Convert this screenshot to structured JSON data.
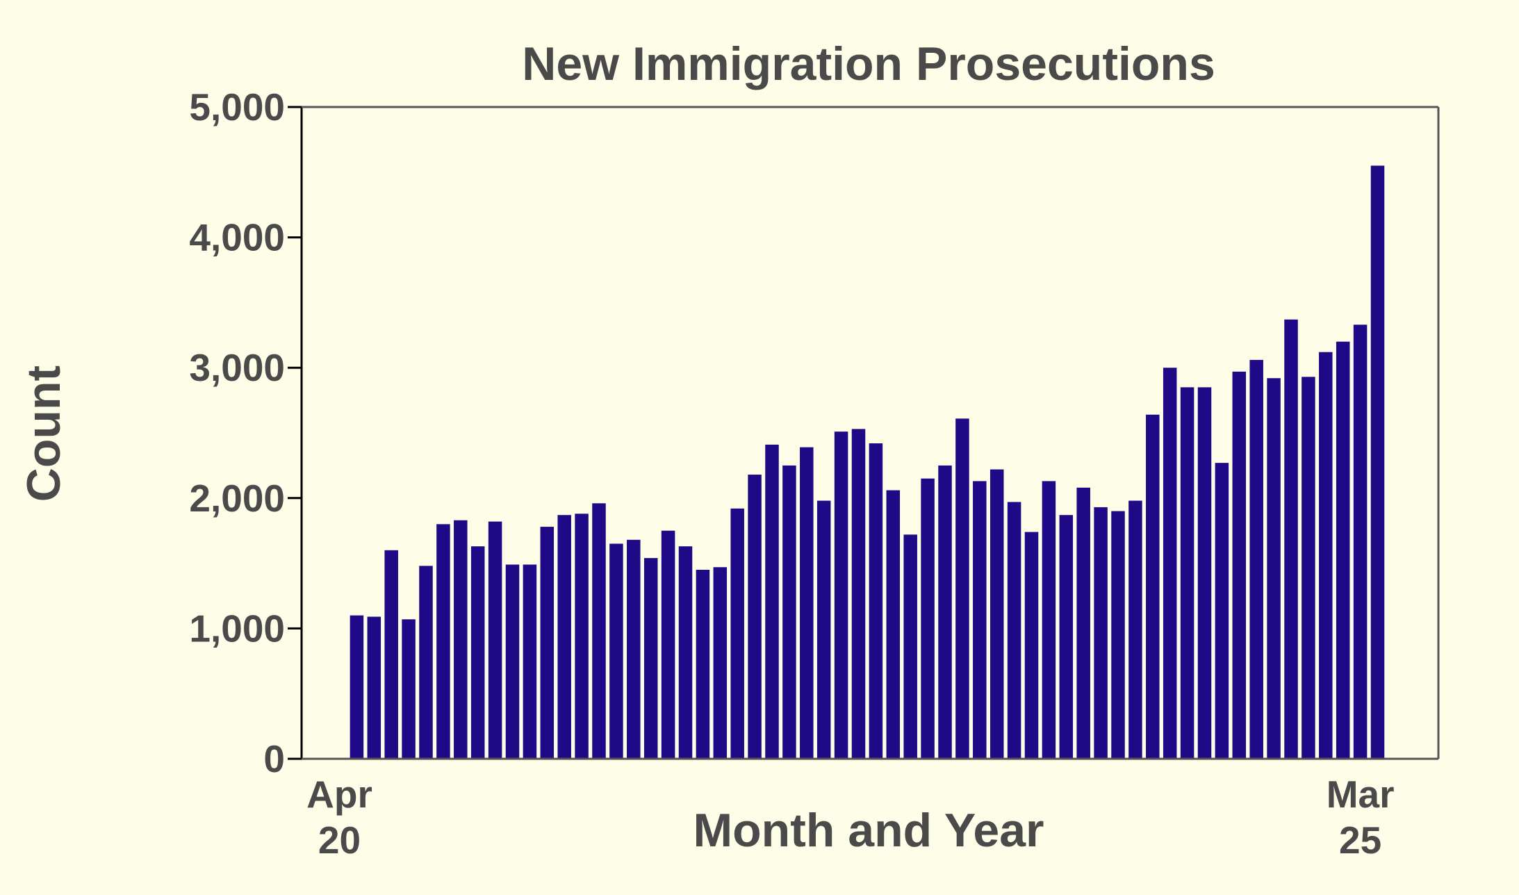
{
  "chart_data": {
    "type": "bar",
    "title": "New Immigration Prosecutions",
    "xlabel": "Month and Year",
    "ylabel": "Count",
    "ylim": [
      0,
      5000
    ],
    "yticks": [
      0,
      1000,
      2000,
      3000,
      4000,
      5000
    ],
    "ytick_labels": [
      "0",
      "1,000",
      "2,000",
      "3,000",
      "4,000",
      "5,000"
    ],
    "xtick_labels": [
      {
        "month": "Apr",
        "year": "20",
        "at": "2020-04"
      },
      {
        "month": "Mar",
        "year": "25",
        "at": "2025-03"
      }
    ],
    "grid": false,
    "colors": {
      "background": "#fdfde8",
      "bar": "#1e0a87",
      "axis": "#000000",
      "text": "#4a4a4a"
    },
    "categories": [
      "2020-04",
      "2020-05",
      "2020-06",
      "2020-07",
      "2020-08",
      "2020-09",
      "2020-10",
      "2020-11",
      "2020-12",
      "2021-01",
      "2021-02",
      "2021-03",
      "2021-04",
      "2021-05",
      "2021-06",
      "2021-07",
      "2021-08",
      "2021-09",
      "2021-10",
      "2021-11",
      "2021-12",
      "2022-01",
      "2022-02",
      "2022-03",
      "2022-04",
      "2022-05",
      "2022-06",
      "2022-07",
      "2022-08",
      "2022-09",
      "2022-10",
      "2022-11",
      "2022-12",
      "2023-01",
      "2023-02",
      "2023-03",
      "2023-04",
      "2023-05",
      "2023-06",
      "2023-07",
      "2023-08",
      "2023-09",
      "2023-10",
      "2023-11",
      "2023-12",
      "2024-01",
      "2024-02",
      "2024-03",
      "2024-04",
      "2024-05",
      "2024-06",
      "2024-07",
      "2024-08",
      "2024-09",
      "2024-10",
      "2024-11",
      "2024-12",
      "2025-01",
      "2025-02",
      "2025-03"
    ],
    "values": [
      1100,
      1090,
      1600,
      1070,
      1480,
      1800,
      1830,
      1630,
      1820,
      1490,
      1490,
      1780,
      1870,
      1880,
      1960,
      1650,
      1680,
      1540,
      1750,
      1630,
      1450,
      1470,
      1920,
      2180,
      2410,
      2250,
      2390,
      1980,
      2510,
      2530,
      2420,
      2060,
      1720,
      2150,
      2250,
      2610,
      2130,
      2220,
      1970,
      1740,
      2130,
      1870,
      2080,
      1930,
      1900,
      1980,
      2640,
      3000,
      2850,
      2850,
      2270,
      2970,
      3060,
      2920,
      3370,
      2930,
      3120,
      3200,
      3330,
      4550
    ]
  }
}
